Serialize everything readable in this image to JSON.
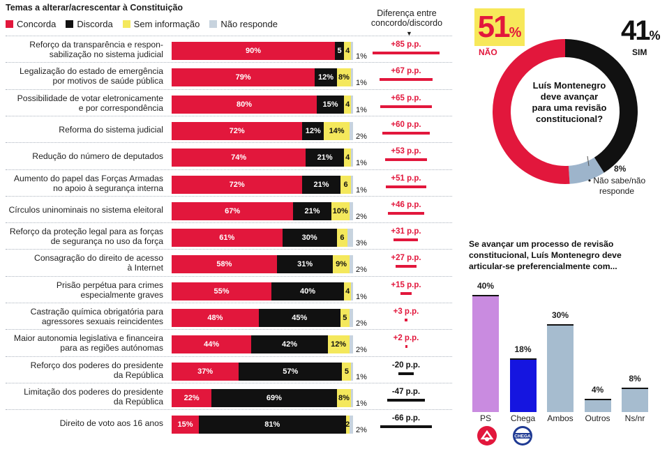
{
  "chart_data": [
    {
      "type": "bar",
      "stacked": true,
      "orientation": "horizontal",
      "title": "Temas a alterar/acrescentar à Constituição",
      "legend": [
        {
          "key": "concorda",
          "name": "Concorda",
          "color": "#e2173c"
        },
        {
          "key": "discorda",
          "name": "Discorda",
          "color": "#111111"
        },
        {
          "key": "sem_info",
          "name": "Sem informação",
          "color": "#f4e85c"
        },
        {
          "key": "nao_responde",
          "name": "Não responde",
          "color": "#c7d3de"
        }
      ],
      "diff_header": [
        "Diferença entre",
        "concordo/discordo"
      ],
      "diff_marker": "▼",
      "rows": [
        {
          "label": [
            "Reforço da transparência e respon-",
            "sabilização no sistema judicial"
          ],
          "concorda": 90,
          "discorda": 5,
          "sem_info": 4,
          "nao_responde": 1,
          "labels": [
            "90%",
            "5",
            "4",
            "1%"
          ],
          "diff": 85,
          "diff_label": "+85 p.p."
        },
        {
          "label": [
            "Legalização do estado de emergência",
            "por motivos de saúde pública"
          ],
          "concorda": 79,
          "discorda": 12,
          "sem_info": 8,
          "nao_responde": 1,
          "labels": [
            "79%",
            "12%",
            "8%",
            "1%"
          ],
          "diff": 67,
          "diff_label": "+67 p.p."
        },
        {
          "label": [
            "Possibilidade de votar eletronicamente",
            "e por correspondência"
          ],
          "concorda": 80,
          "discorda": 15,
          "sem_info": 4,
          "nao_responde": 1,
          "labels": [
            "80%",
            "15%",
            "4",
            "1%"
          ],
          "diff": 65,
          "diff_label": "+65 p.p."
        },
        {
          "label": [
            "Reforma do sistema judicial"
          ],
          "concorda": 72,
          "discorda": 12,
          "sem_info": 14,
          "nao_responde": 2,
          "labels": [
            "72%",
            "12%",
            "14%",
            "2%"
          ],
          "diff": 60,
          "diff_label": "+60 p.p."
        },
        {
          "label": [
            "Redução do número de deputados"
          ],
          "concorda": 74,
          "discorda": 21,
          "sem_info": 4,
          "nao_responde": 1,
          "labels": [
            "74%",
            "21%",
            "4",
            "1%"
          ],
          "diff": 53,
          "diff_label": "+53 p.p."
        },
        {
          "label": [
            "Aumento do papel das Forças Armadas",
            "no apoio à segurança interna"
          ],
          "concorda": 72,
          "discorda": 21,
          "sem_info": 6,
          "nao_responde": 1,
          "labels": [
            "72%",
            "21%",
            "6",
            "1%"
          ],
          "diff": 51,
          "diff_label": "+51 p.p."
        },
        {
          "label": [
            "Círculos uninominais no sistema eleitoral"
          ],
          "concorda": 67,
          "discorda": 21,
          "sem_info": 10,
          "nao_responde": 2,
          "labels": [
            "67%",
            "21%",
            "10%",
            "2%"
          ],
          "diff": 46,
          "diff_label": "+46 p.p."
        },
        {
          "label": [
            "Reforço da proteção legal para as forças",
            "de segurança no uso da força"
          ],
          "concorda": 61,
          "discorda": 30,
          "sem_info": 6,
          "nao_responde": 3,
          "labels": [
            "61%",
            "30%",
            "6",
            "3%"
          ],
          "diff": 31,
          "diff_label": "+31 p.p."
        },
        {
          "label": [
            "Consagração do direito de acesso",
            "à Internet"
          ],
          "concorda": 58,
          "discorda": 31,
          "sem_info": 9,
          "nao_responde": 2,
          "labels": [
            "58%",
            "31%",
            "9%",
            "2%"
          ],
          "diff": 27,
          "diff_label": "+27 p.p."
        },
        {
          "label": [
            "Prisão perpétua para crimes",
            "especialmente graves"
          ],
          "concorda": 55,
          "discorda": 40,
          "sem_info": 4,
          "nao_responde": 1,
          "labels": [
            "55%",
            "40%",
            "4",
            "1%"
          ],
          "diff": 15,
          "diff_label": "+15 p.p."
        },
        {
          "label": [
            "Castração química obrigatória para",
            "agressores sexuais reincidentes"
          ],
          "concorda": 48,
          "discorda": 45,
          "sem_info": 5,
          "nao_responde": 2,
          "labels": [
            "48%",
            "45%",
            "5",
            "2%"
          ],
          "diff": 3,
          "diff_label": "+3 p.p."
        },
        {
          "label": [
            "Maior autonomia legislativa e financeira",
            "para as regiões autónomas"
          ],
          "concorda": 44,
          "discorda": 42,
          "sem_info": 12,
          "nao_responde": 2,
          "labels": [
            "44%",
            "42%",
            "12%",
            "2%"
          ],
          "diff": 2,
          "diff_label": "+2 p.p."
        },
        {
          "label": [
            "Reforço dos poderes do presidente",
            "da República"
          ],
          "concorda": 37,
          "discorda": 57,
          "sem_info": 5,
          "nao_responde": 1,
          "labels": [
            "37%",
            "57%",
            "5",
            "1%"
          ],
          "diff": -20,
          "diff_label": "-20 p.p."
        },
        {
          "label": [
            "Limitação dos poderes do presidente",
            "da República"
          ],
          "concorda": 22,
          "discorda": 69,
          "sem_info": 8,
          "nao_responde": 1,
          "labels": [
            "22%",
            "69%",
            "8%",
            "1%"
          ],
          "diff": -47,
          "diff_label": "-47 p.p."
        },
        {
          "label": [
            "Direito de voto aos 16 anos"
          ],
          "concorda": 15,
          "discorda": 81,
          "sem_info": 2,
          "nao_responde": 2,
          "labels": [
            "15%",
            "81%",
            "2",
            "2%"
          ],
          "diff": -66,
          "diff_label": "-66 p.p."
        }
      ]
    },
    {
      "type": "pie",
      "donut": true,
      "title": [
        "Luís Montenegro",
        "deve avançar",
        "para uma revisão",
        "constitucional?"
      ],
      "slices": [
        {
          "name": "NÃO",
          "value": 51,
          "color": "#e2173c"
        },
        {
          "name": "SIM",
          "value": 41,
          "color": "#111111"
        },
        {
          "name": "Não sabe/não responde",
          "value": 8,
          "color": "#9db4cb"
        }
      ],
      "labels": {
        "nao_value": "51",
        "nao_name": "NÃO",
        "sim_value": "41",
        "sim_name": "SIM",
        "ns_value": "8%",
        "ns_name": [
          "• Não sabe/não",
          "responde"
        ],
        "pct": "%"
      }
    },
    {
      "type": "bar",
      "title": [
        "Se avançar um processo de revisão",
        "constitucional, Luís Montenegro deve",
        "articular-se preferencialmente com..."
      ],
      "categories": [
        "PS",
        "Chega",
        "Ambos",
        "Outros",
        "Ns/nr"
      ],
      "values": [
        40,
        18,
        30,
        4,
        8
      ],
      "value_labels": [
        "40%",
        "18%",
        "30%",
        "4%",
        "8%"
      ],
      "colors": [
        "#c98be0",
        "#1515e0",
        "#a6bccf",
        "#a6bccf",
        "#a6bccf"
      ],
      "ylim": [
        0,
        40
      ],
      "logos": {
        "ps": "PS logo",
        "chega": "CHEGA"
      }
    }
  ]
}
